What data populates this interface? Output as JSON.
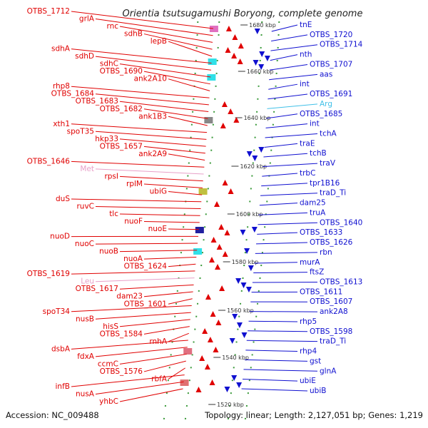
{
  "title": "Orientia tsutsugamushi Boryong, complete genome",
  "footer": {
    "accession": "Accession: NC_009488",
    "summary": "Topology: linear; Length: 2,127,051 bp; Genes: 1,219"
  },
  "colors": {
    "left_gene": "#e00000",
    "right_gene": "#1010d0",
    "rna_left": "#e8a0c8",
    "rna_right": "#40c0e8",
    "backbone": "#999999"
  },
  "kbp_ticks": [
    {
      "label": "1680 kbp"
    },
    {
      "label": "1660 kbp"
    },
    {
      "label": "1640 kbp"
    },
    {
      "label": "1620 kbp"
    },
    {
      "label": "1600 kbp"
    },
    {
      "label": "1580 kbp"
    },
    {
      "label": "1560 kbp"
    },
    {
      "label": "1540 kbp"
    },
    {
      "label": "1520 kbp"
    }
  ],
  "left_labels": [
    {
      "text": "OTBS_1712",
      "kind": "gene"
    },
    {
      "text": "grlA",
      "kind": "gene"
    },
    {
      "text": "rnc",
      "kind": "gene"
    },
    {
      "text": "sdhB",
      "kind": "gene"
    },
    {
      "text": "lepB",
      "kind": "gene"
    },
    {
      "text": "sdhA",
      "kind": "gene"
    },
    {
      "text": "sdhD",
      "kind": "gene"
    },
    {
      "text": "sdhC",
      "kind": "gene"
    },
    {
      "text": "OTBS_1690",
      "kind": "gene"
    },
    {
      "text": "ank2A10",
      "kind": "gene"
    },
    {
      "text": "rhp8",
      "kind": "gene"
    },
    {
      "text": "OTBS_1684",
      "kind": "gene"
    },
    {
      "text": "OTBS_1683",
      "kind": "gene"
    },
    {
      "text": "OTBS_1682",
      "kind": "gene"
    },
    {
      "text": "ank1B3",
      "kind": "gene"
    },
    {
      "text": "xth1",
      "kind": "gene"
    },
    {
      "text": "spoT35",
      "kind": "gene"
    },
    {
      "text": "hkp33",
      "kind": "gene"
    },
    {
      "text": "OTBS_1657",
      "kind": "gene"
    },
    {
      "text": "ank2A9",
      "kind": "gene"
    },
    {
      "text": "OTBS_1646",
      "kind": "gene"
    },
    {
      "text": "Met",
      "kind": "rna"
    },
    {
      "text": "rpsI",
      "kind": "gene"
    },
    {
      "text": "rplM",
      "kind": "gene"
    },
    {
      "text": "ubiG",
      "kind": "gene"
    },
    {
      "text": "duS",
      "kind": "gene"
    },
    {
      "text": "ruvC",
      "kind": "gene"
    },
    {
      "text": "tlc",
      "kind": "gene"
    },
    {
      "text": "nuoF",
      "kind": "gene"
    },
    {
      "text": "nuoE",
      "kind": "gene"
    },
    {
      "text": "nuoD",
      "kind": "gene"
    },
    {
      "text": "nuoC",
      "kind": "gene"
    },
    {
      "text": "nuoB",
      "kind": "gene"
    },
    {
      "text": "nuoA",
      "kind": "gene"
    },
    {
      "text": "OTBS_1624",
      "kind": "gene"
    },
    {
      "text": "OTBS_1619",
      "kind": "gene"
    },
    {
      "text": "Leu",
      "kind": "rna"
    },
    {
      "text": "OTBS_1617",
      "kind": "gene"
    },
    {
      "text": "dam23",
      "kind": "gene"
    },
    {
      "text": "OTBS_1601",
      "kind": "gene"
    },
    {
      "text": "spoT34",
      "kind": "gene"
    },
    {
      "text": "nusB",
      "kind": "gene"
    },
    {
      "text": "hisS",
      "kind": "gene"
    },
    {
      "text": "OTBS_1584",
      "kind": "gene"
    },
    {
      "text": "rnhA",
      "kind": "gene"
    },
    {
      "text": "dsbA",
      "kind": "gene"
    },
    {
      "text": "fdxA",
      "kind": "gene"
    },
    {
      "text": "ccmC",
      "kind": "gene"
    },
    {
      "text": "OTBS_1576",
      "kind": "gene"
    },
    {
      "text": "rbfA",
      "kind": "gene"
    },
    {
      "text": "infB",
      "kind": "gene"
    },
    {
      "text": "nusA",
      "kind": "gene"
    },
    {
      "text": "yhbC",
      "kind": "gene"
    }
  ],
  "right_labels": [
    {
      "text": "tnE",
      "kind": "gene"
    },
    {
      "text": "OTBS_1720",
      "kind": "gene"
    },
    {
      "text": "OTBS_1714",
      "kind": "gene"
    },
    {
      "text": "nth",
      "kind": "gene"
    },
    {
      "text": "OTBS_1707",
      "kind": "gene"
    },
    {
      "text": "aas",
      "kind": "gene"
    },
    {
      "text": "int",
      "kind": "gene"
    },
    {
      "text": "OTBS_1691",
      "kind": "gene"
    },
    {
      "text": "Arg",
      "kind": "rna"
    },
    {
      "text": "OTBS_1685",
      "kind": "gene"
    },
    {
      "text": "int",
      "kind": "gene"
    },
    {
      "text": "tchA",
      "kind": "gene"
    },
    {
      "text": "traE",
      "kind": "gene"
    },
    {
      "text": "tchB",
      "kind": "gene"
    },
    {
      "text": "traV",
      "kind": "gene"
    },
    {
      "text": "trbC",
      "kind": "gene"
    },
    {
      "text": "tpr1B16",
      "kind": "gene"
    },
    {
      "text": "traD_Ti",
      "kind": "gene"
    },
    {
      "text": "dam25",
      "kind": "gene"
    },
    {
      "text": "truA",
      "kind": "gene"
    },
    {
      "text": "OTBS_1640",
      "kind": "gene"
    },
    {
      "text": "OTBS_1633",
      "kind": "gene"
    },
    {
      "text": "OTBS_1626",
      "kind": "gene"
    },
    {
      "text": "rbn",
      "kind": "gene"
    },
    {
      "text": "murA",
      "kind": "gene"
    },
    {
      "text": "ftsZ",
      "kind": "gene"
    },
    {
      "text": "OTBS_1613",
      "kind": "gene"
    },
    {
      "text": "OTBS_1611",
      "kind": "gene"
    },
    {
      "text": "OTBS_1607",
      "kind": "gene"
    },
    {
      "text": "ank2A8",
      "kind": "gene"
    },
    {
      "text": "rhp5",
      "kind": "gene"
    },
    {
      "text": "OTBS_1598",
      "kind": "gene"
    },
    {
      "text": "traD_Ti",
      "kind": "gene"
    },
    {
      "text": "rhp4",
      "kind": "gene"
    },
    {
      "text": "gst",
      "kind": "gene"
    },
    {
      "text": "glnA",
      "kind": "gene"
    },
    {
      "text": "ubiE",
      "kind": "gene"
    },
    {
      "text": "ubiB",
      "kind": "gene"
    }
  ]
}
